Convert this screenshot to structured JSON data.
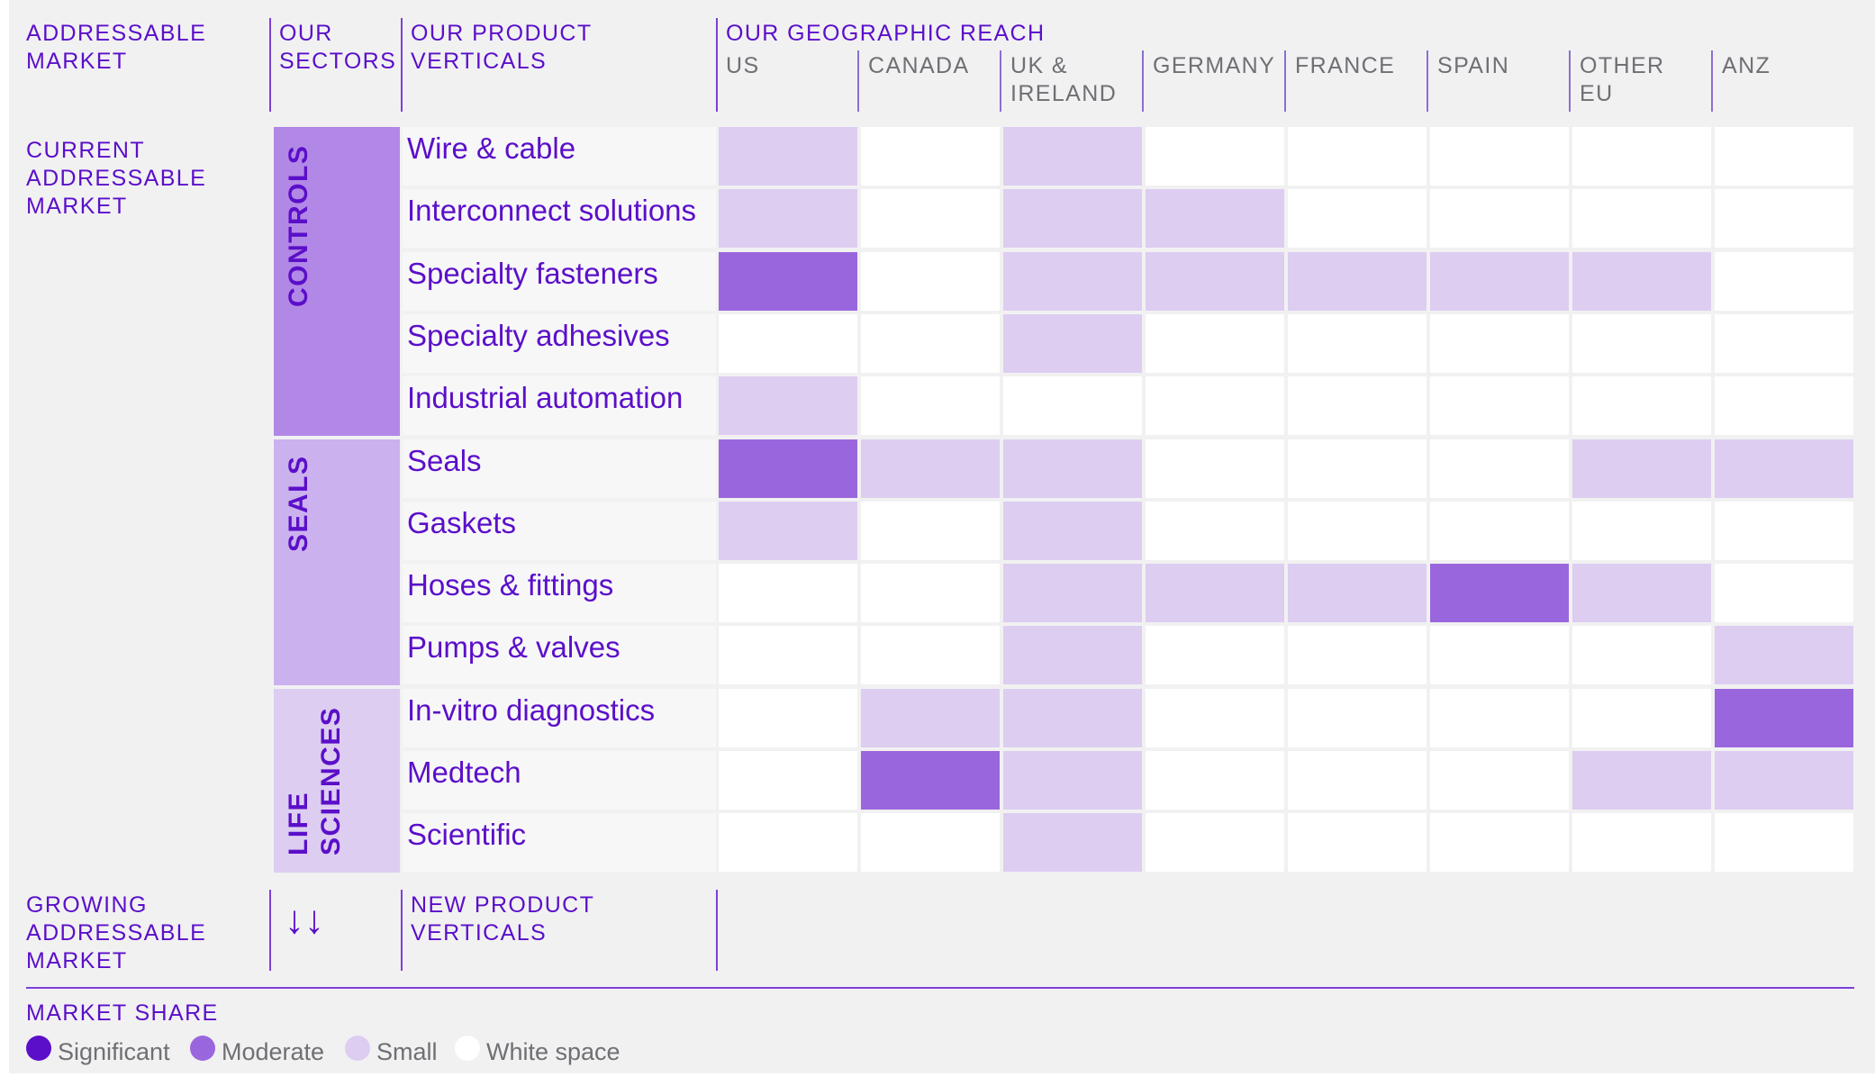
{
  "headers": {
    "addressable_market": "ADDRESSABLE\nMARKET",
    "our_sectors": "OUR\nSECTORS",
    "our_product_verticals": "OUR PRODUCT\nVERTICALS",
    "geographic_reach": "OUR GEOGRAPHIC REACH",
    "current_market": "CURRENT\nADDRESSABLE\nMARKET",
    "growing_market": "GROWING\nADDRESSABLE\nMARKET",
    "new_product_verticals": "NEW PRODUCT\nVERTICALS",
    "arrows": "↓↓",
    "market_share": "MARKET SHARE"
  },
  "colors": {
    "panel_bg": "#f1f1f2",
    "accent": "#5b0fc9",
    "significant": "#5b0fc9",
    "moderate": "#9a66dd",
    "small": "#ddcdf1",
    "white_space": "#ffffff",
    "sector_controls": "#b288e6",
    "sector_seals": "#cbb2ef",
    "sector_life_sciences": "#ddcdf1"
  },
  "chart_data": {
    "type": "heatmap",
    "title": "OUR GEOGRAPHIC REACH",
    "x": [
      "US",
      "CANADA",
      "UK &\nIRELAND",
      "GERMANY",
      "FRANCE",
      "SPAIN",
      "OTHER\nEU",
      "ANZ"
    ],
    "sectors": [
      {
        "name": "CONTROLS",
        "color_key": "sector_controls",
        "verticals": [
          "Wire & cable",
          "Interconnect solutions",
          "Specialty fasteners",
          "Specialty adhesives",
          "Industrial automation"
        ]
      },
      {
        "name": "SEALS",
        "color_key": "sector_seals",
        "verticals": [
          "Seals",
          "Gaskets",
          "Hoses & fittings",
          "Pumps & valves"
        ]
      },
      {
        "name": "LIFE\nSCIENCES",
        "color_key": "sector_life_sciences",
        "verticals": [
          "In-vitro diagnostics",
          "Medtech",
          "Scientific"
        ]
      }
    ],
    "y": [
      "Wire & cable",
      "Interconnect solutions",
      "Specialty fasteners",
      "Specialty adhesives",
      "Industrial automation",
      "Seals",
      "Gaskets",
      "Hoses & fittings",
      "Pumps & valves",
      "In-vitro diagnostics",
      "Medtech",
      "Scientific"
    ],
    "values": [
      [
        "small",
        "white",
        "small",
        "white",
        "white",
        "white",
        "white",
        "white"
      ],
      [
        "small",
        "white",
        "small",
        "small",
        "white",
        "white",
        "white",
        "white"
      ],
      [
        "moderate",
        "white",
        "small",
        "small",
        "small",
        "small",
        "small",
        "white"
      ],
      [
        "white",
        "white",
        "small",
        "white",
        "white",
        "white",
        "white",
        "white"
      ],
      [
        "small",
        "white",
        "white",
        "white",
        "white",
        "white",
        "white",
        "white"
      ],
      [
        "moderate",
        "small",
        "small",
        "white",
        "white",
        "white",
        "small",
        "small"
      ],
      [
        "small",
        "white",
        "small",
        "white",
        "white",
        "white",
        "white",
        "white"
      ],
      [
        "white",
        "white",
        "small",
        "small",
        "small",
        "moderate",
        "small",
        "white"
      ],
      [
        "white",
        "white",
        "small",
        "white",
        "white",
        "white",
        "white",
        "small"
      ],
      [
        "white",
        "small",
        "small",
        "white",
        "white",
        "white",
        "white",
        "moderate"
      ],
      [
        "white",
        "moderate",
        "small",
        "white",
        "white",
        "white",
        "small",
        "small"
      ],
      [
        "white",
        "white",
        "small",
        "white",
        "white",
        "white",
        "white",
        "white"
      ]
    ],
    "legend": [
      {
        "key": "significant",
        "label": "Significant"
      },
      {
        "key": "moderate",
        "label": "Moderate"
      },
      {
        "key": "small",
        "label": "Small"
      },
      {
        "key": "white",
        "label": "White space"
      }
    ]
  }
}
